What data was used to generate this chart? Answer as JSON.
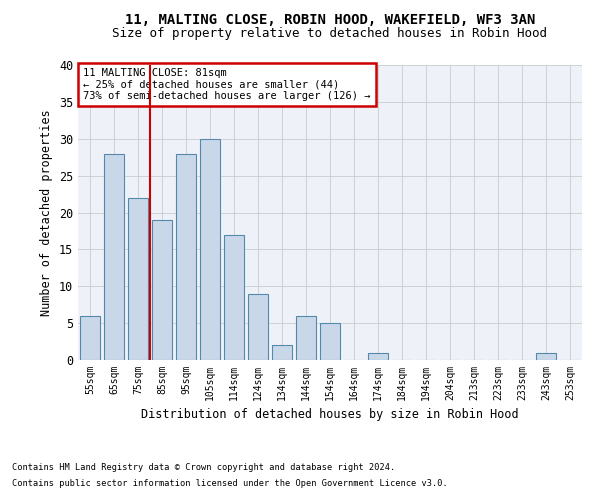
{
  "title1": "11, MALTING CLOSE, ROBIN HOOD, WAKEFIELD, WF3 3AN",
  "title2": "Size of property relative to detached houses in Robin Hood",
  "xlabel": "Distribution of detached houses by size in Robin Hood",
  "ylabel": "Number of detached properties",
  "categories": [
    "55sqm",
    "65sqm",
    "75sqm",
    "85sqm",
    "95sqm",
    "105sqm",
    "114sqm",
    "124sqm",
    "134sqm",
    "144sqm",
    "154sqm",
    "164sqm",
    "174sqm",
    "184sqm",
    "194sqm",
    "204sqm",
    "213sqm",
    "223sqm",
    "233sqm",
    "243sqm",
    "253sqm"
  ],
  "values": [
    6,
    28,
    22,
    19,
    28,
    30,
    17,
    9,
    2,
    6,
    5,
    0,
    1,
    0,
    0,
    0,
    0,
    0,
    0,
    1,
    0
  ],
  "bar_color": "#c8d8e8",
  "bar_edge_color": "#5588aa",
  "vline_color": "#cc0000",
  "annotation_text": "11 MALTING CLOSE: 81sqm\n← 25% of detached houses are smaller (44)\n73% of semi-detached houses are larger (126) →",
  "annotation_box_color": "#ffffff",
  "annotation_box_edge": "#cc0000",
  "footnote1": "Contains HM Land Registry data © Crown copyright and database right 2024.",
  "footnote2": "Contains public sector information licensed under the Open Government Licence v3.0.",
  "ylim": [
    0,
    40
  ],
  "yticks": [
    0,
    5,
    10,
    15,
    20,
    25,
    30,
    35,
    40
  ],
  "bg_color": "#eef2f8",
  "title1_fontsize": 10,
  "title2_fontsize": 9
}
